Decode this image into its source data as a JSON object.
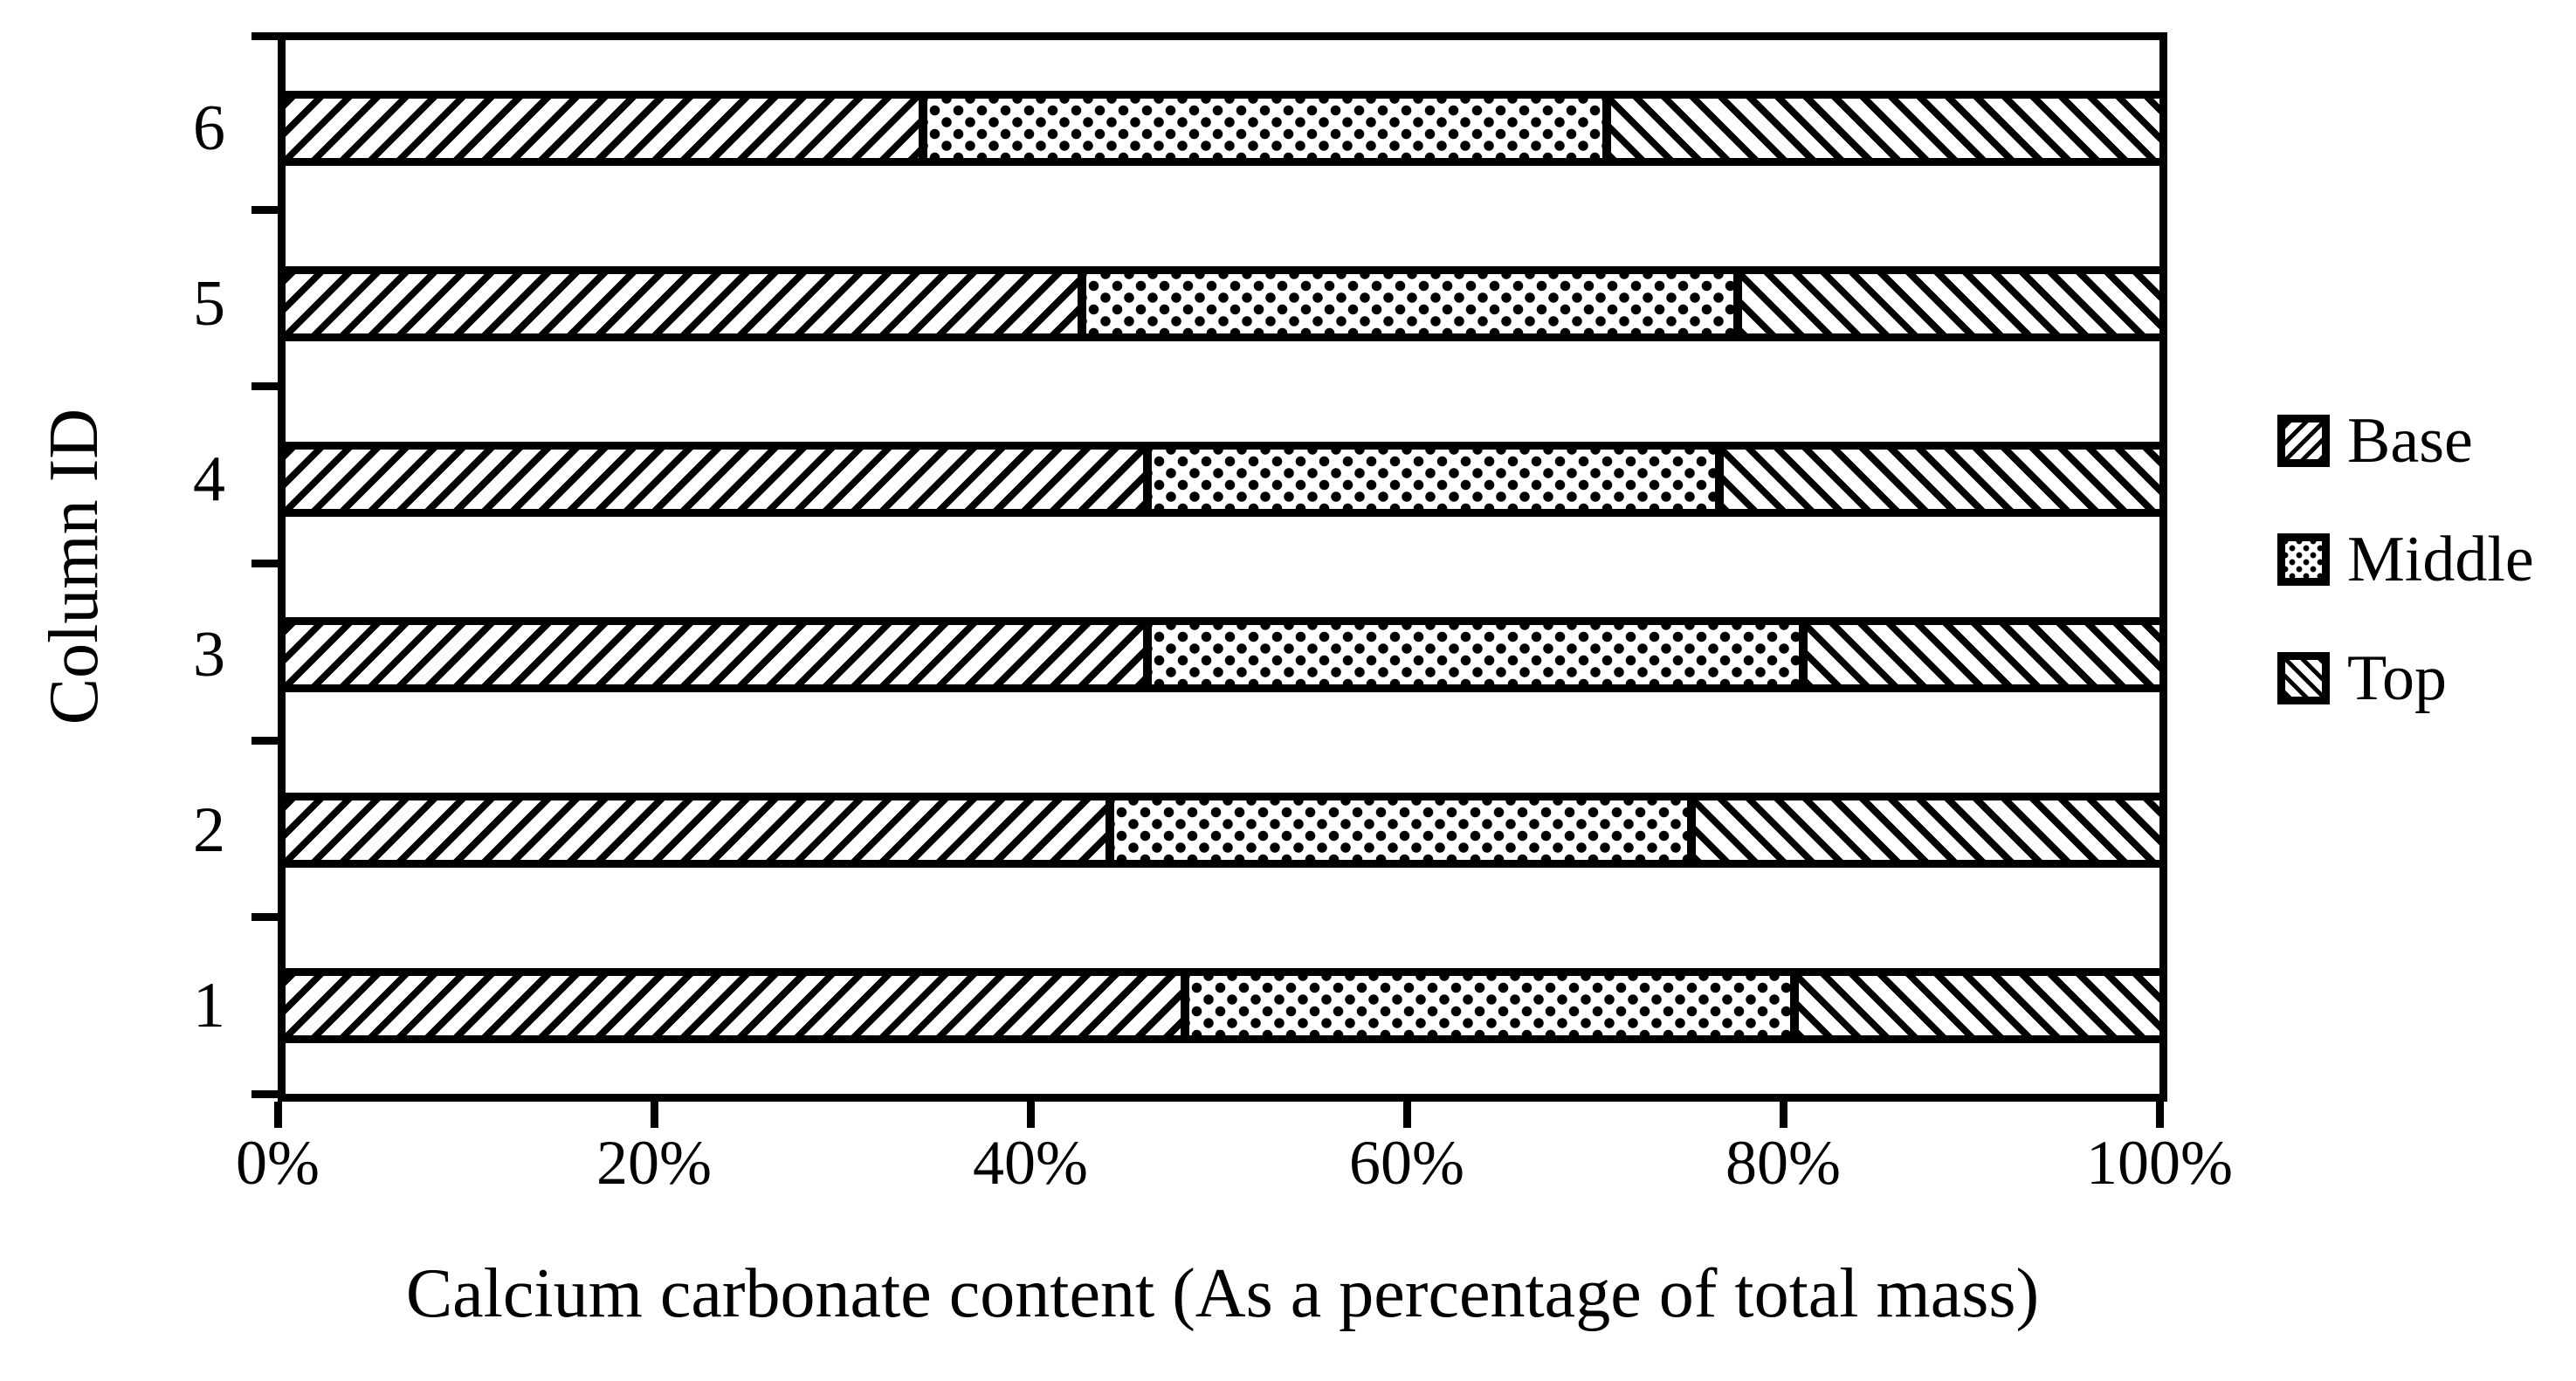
{
  "chart_data": {
    "type": "bar",
    "orientation": "horizontal",
    "stacked": true,
    "title": "",
    "xlabel": "Calcium carbonate content (As a percentage of total mass)",
    "ylabel": "Column ID",
    "categories": [
      "1",
      "2",
      "3",
      "4",
      "5",
      "6"
    ],
    "series": [
      {
        "name": "Base",
        "pattern": "diagonal-forward-hatch",
        "values": [
          48,
          44,
          46,
          46,
          42.5,
          34
        ]
      },
      {
        "name": "Middle",
        "pattern": "dot-grid",
        "values": [
          32.5,
          31,
          35,
          30.5,
          35,
          36.5
        ]
      },
      {
        "name": "Top",
        "pattern": "diagonal-backward-hatch",
        "values": [
          19.5,
          25,
          19,
          23.5,
          22.5,
          29.5
        ]
      }
    ],
    "x_ticks": [
      "0%",
      "20%",
      "40%",
      "60%",
      "80%",
      "100%"
    ],
    "xlim": [
      0,
      100
    ],
    "grid": false,
    "legend": {
      "position": "right",
      "entries": [
        "Base",
        "Middle",
        "Top"
      ]
    },
    "colors": {
      "foreground": "#000000",
      "background": "#ffffff"
    },
    "category_order_top_to_bottom": [
      "6",
      "5",
      "4",
      "3",
      "2",
      "1"
    ]
  }
}
